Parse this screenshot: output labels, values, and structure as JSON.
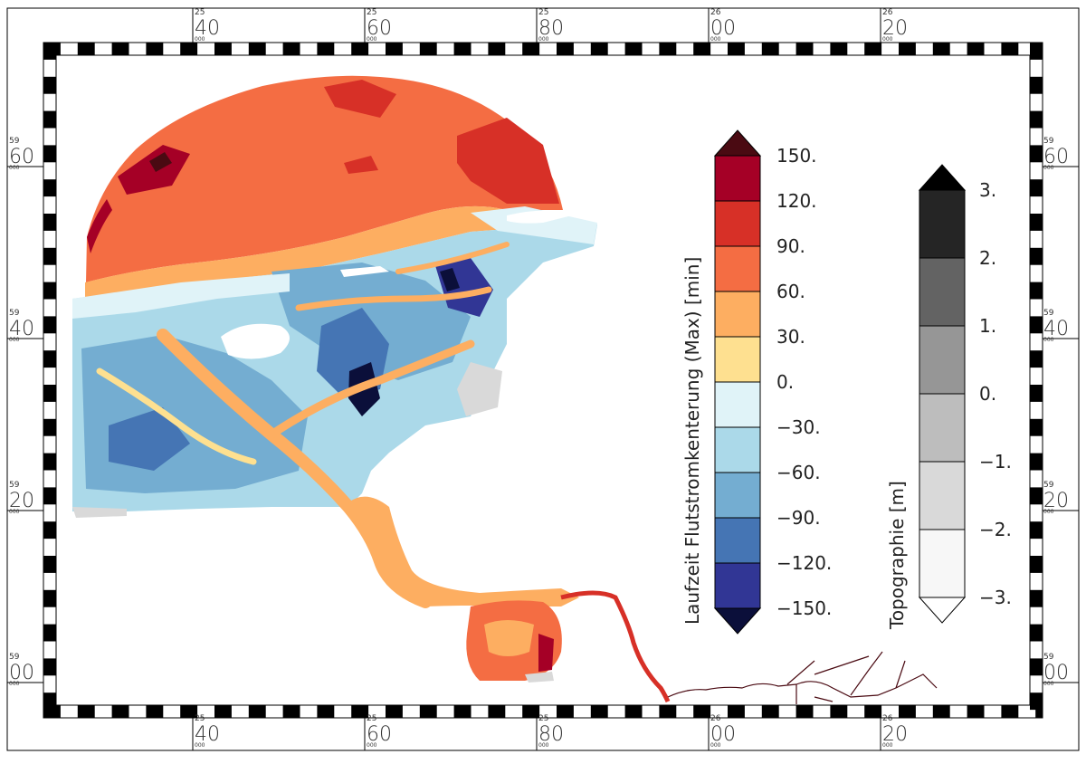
{
  "map": {
    "top_ticks": [
      {
        "sup": "25",
        "main": "40",
        "sub": "000"
      },
      {
        "sup": "25",
        "main": "60",
        "sub": "000"
      },
      {
        "sup": "25",
        "main": "80",
        "sub": "000"
      },
      {
        "sup": "26",
        "main": "00",
        "sub": "000"
      },
      {
        "sup": "26",
        "main": "20",
        "sub": "000"
      }
    ],
    "bottom_ticks": [
      {
        "sup": "25",
        "main": "40",
        "sub": "000"
      },
      {
        "sup": "25",
        "main": "60",
        "sub": "000"
      },
      {
        "sup": "25",
        "main": "80",
        "sub": "000"
      },
      {
        "sup": "26",
        "main": "00",
        "sub": "000"
      },
      {
        "sup": "26",
        "main": "20",
        "sub": "000"
      }
    ],
    "left_ticks": [
      {
        "sup": "59",
        "main": "60",
        "sub": "000"
      },
      {
        "sup": "59",
        "main": "40",
        "sub": "000"
      },
      {
        "sup": "59",
        "main": "20",
        "sub": "000"
      },
      {
        "sup": "59",
        "main": "00",
        "sub": "000"
      }
    ],
    "right_ticks": [
      {
        "sup": "59",
        "main": "60",
        "sub": "000"
      },
      {
        "sup": "59",
        "main": "40",
        "sub": "000"
      },
      {
        "sup": "59",
        "main": "20",
        "sub": "000"
      },
      {
        "sup": "59",
        "main": "00",
        "sub": "000"
      }
    ]
  },
  "legend_laufzeit": {
    "title": "Laufzeit  Flutstromkenterung  (Max)  [min]",
    "labels": [
      "150.",
      "120.",
      "90.",
      "60.",
      "30.",
      "0.",
      "−30.",
      "−60.",
      "−90.",
      "−120.",
      "−150."
    ],
    "colors": [
      "#a50026",
      "#d73027",
      "#f46d43",
      "#fdae61",
      "#fee090",
      "#e0f3f8",
      "#abd9e9",
      "#74add1",
      "#4575b4",
      "#313695"
    ],
    "over_color": "#4a0a12",
    "under_color": "#0b0f3a"
  },
  "legend_topo": {
    "title": "Topographie  [m]",
    "labels": [
      "3.",
      "2.",
      "1.",
      "0.",
      "−1.",
      "−2.",
      "−3."
    ],
    "colors": [
      "#252525",
      "#636363",
      "#969696",
      "#bdbdbd",
      "#d9d9d9",
      "#f7f7f7"
    ],
    "over_color": "#000000",
    "under_color": "#ffffff"
  }
}
